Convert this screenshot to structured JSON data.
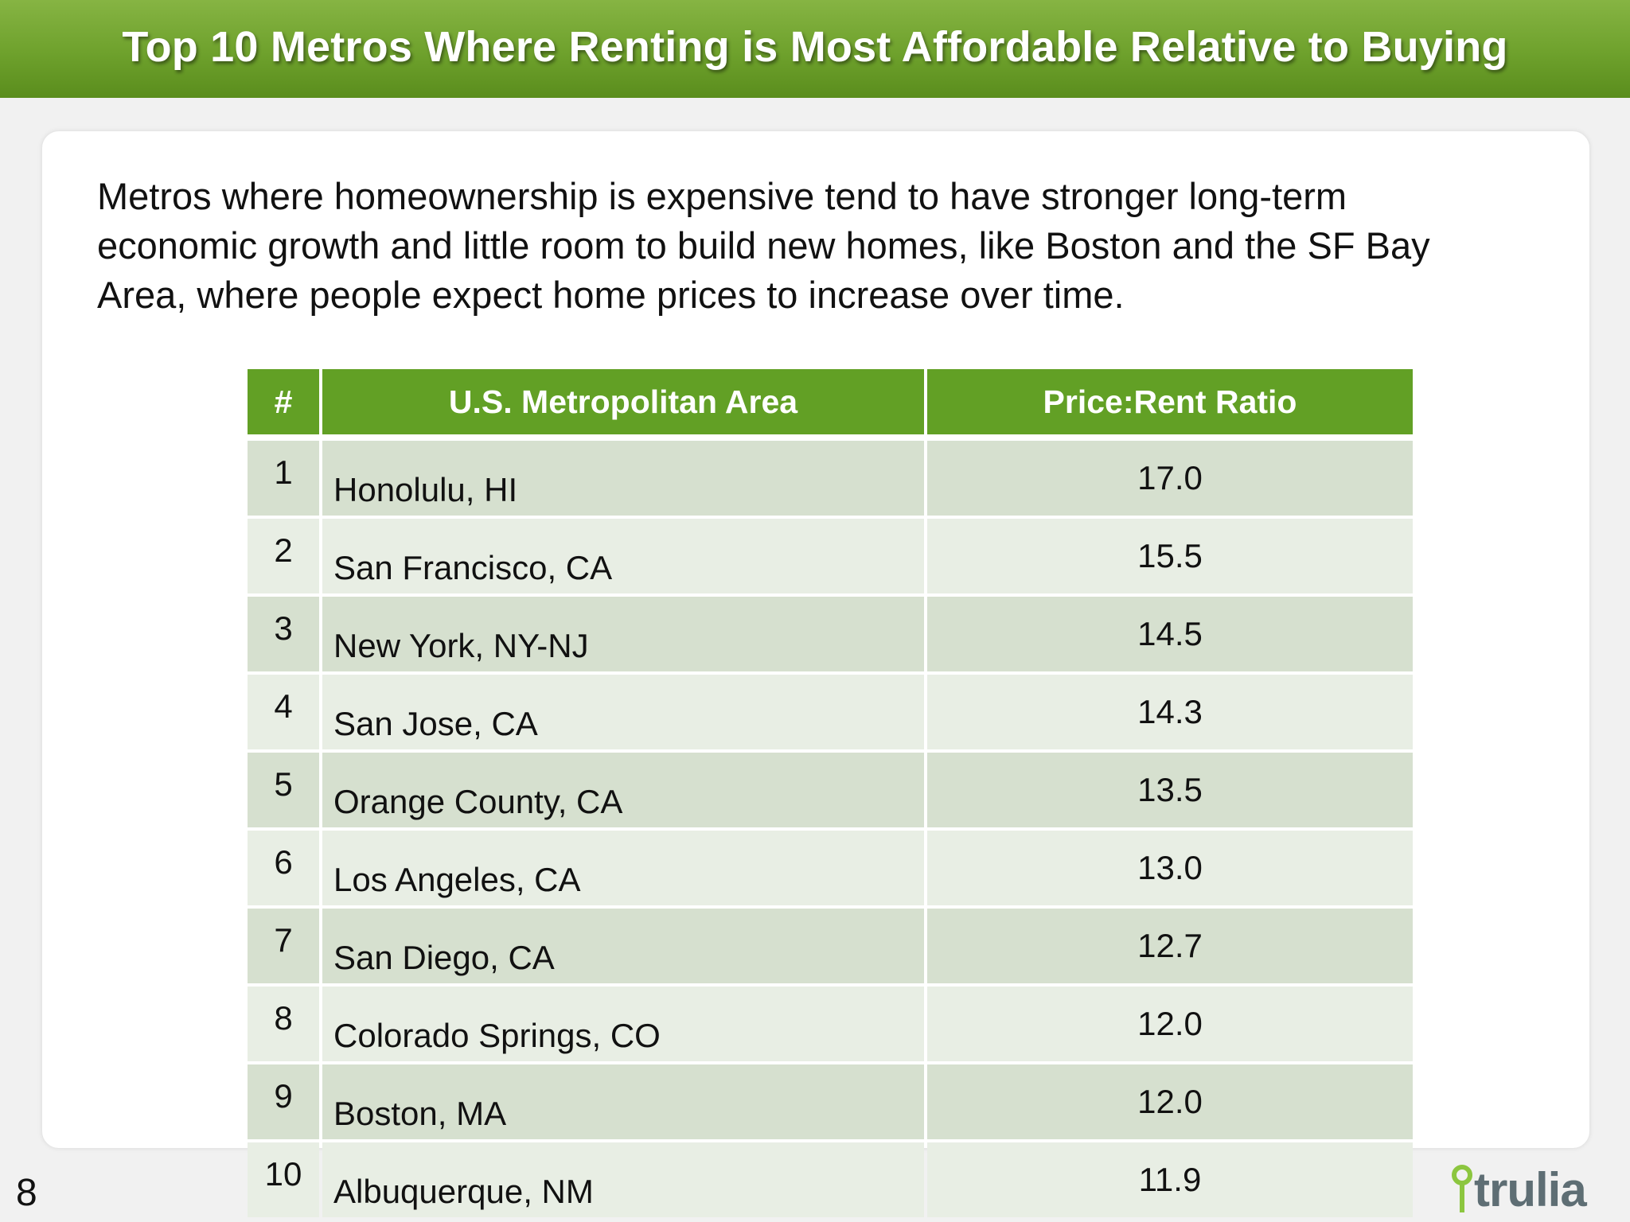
{
  "slide": {
    "title": "Top 10 Metros Where Renting is Most Affordable Relative to Buying",
    "description": "Metros where homeownership is expensive tend to have stronger long-term economic growth and little room to build new homes, like Boston and the SF Bay Area, where people expect home prices to increase over time.",
    "page_number": "8",
    "logo_text": "trulia",
    "colors": {
      "title_bar": "#6ea12c",
      "header": "#62a025",
      "row_dark": "#d6e0cf",
      "row_light": "#e8eee4",
      "logo_pin": "#8cc63f"
    }
  },
  "table": {
    "headers": {
      "rank": "#",
      "metro": "U.S. Metropolitan Area",
      "ratio": "Price:Rent Ratio"
    },
    "rows": [
      {
        "rank": "1",
        "metro": "Honolulu, HI",
        "ratio": "17.0"
      },
      {
        "rank": "2",
        "metro": "San Francisco, CA",
        "ratio": "15.5"
      },
      {
        "rank": "3",
        "metro": "New York, NY-NJ",
        "ratio": "14.5"
      },
      {
        "rank": "4",
        "metro": "San Jose, CA",
        "ratio": "14.3"
      },
      {
        "rank": "5",
        "metro": "Orange County, CA",
        "ratio": "13.5"
      },
      {
        "rank": "6",
        "metro": "Los Angeles, CA",
        "ratio": "13.0"
      },
      {
        "rank": "7",
        "metro": "San Diego, CA",
        "ratio": "12.7"
      },
      {
        "rank": "8",
        "metro": "Colorado Springs, CO",
        "ratio": "12.0"
      },
      {
        "rank": "9",
        "metro": "Boston, MA",
        "ratio": "12.0"
      },
      {
        "rank": "10",
        "metro": "Albuquerque, NM",
        "ratio": "11.9"
      }
    ]
  }
}
